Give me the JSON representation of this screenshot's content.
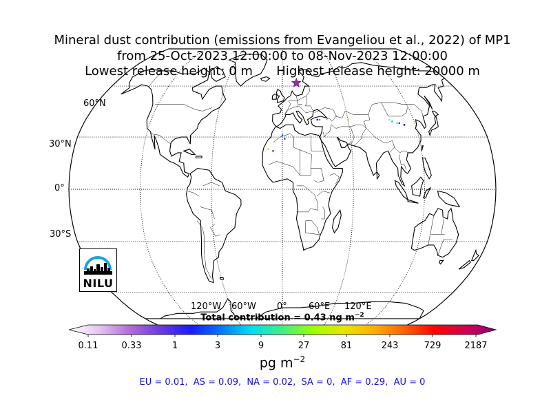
{
  "title": {
    "line1": "Mineral dust contribution (emissions from Evangeliou et al., 2022) of MP1",
    "line2": "from 25-Oct-2023 12:00:00 to 08-Nov-2023 12:00:00",
    "line3": "Lowest release height: 0 m      Highest release height: 20000 m"
  },
  "map": {
    "projection": "robinson",
    "lat_labels": [
      "60°N",
      "30°N",
      "0°",
      "30°S"
    ],
    "lon_labels": [
      "120°W",
      "60°W",
      "0°",
      "60°E",
      "120°E"
    ],
    "release_marker": {
      "shape": "star",
      "color": "#9a2ba8",
      "lon": 15,
      "lat": 62
    },
    "grid": "dotted"
  },
  "total_contribution": "Total contribution = 0.43 ng m",
  "total_exponent": "−2",
  "colorbar": {
    "ticks": [
      "0.11",
      "0.33",
      "1",
      "3",
      "9",
      "27",
      "81",
      "243",
      "729",
      "2187"
    ],
    "units_main": "pg m",
    "units_exponent": "−2"
  },
  "regions_summary": "EU = 0.01,  AS = 0.09,  NA = 0.02,  SA = 0,  AF = 0.29,  AU = 0",
  "logo": {
    "text": "NILU",
    "accent_color": "#1aa3e0"
  }
}
